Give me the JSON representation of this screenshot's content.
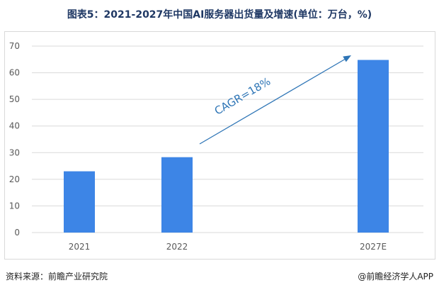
{
  "title": "图表5：2021-2027年中国AI服务器出货量及增速(单位：万台，%)",
  "source": "资料来源：前瞻产业研究院",
  "credit": "@前瞻经济学人APP",
  "chart_data": {
    "type": "bar",
    "title": "图表5：2021-2027年中国AI服务器出货量及增速(单位：万台，%)",
    "categories": [
      "2021",
      "2022",
      "2027E"
    ],
    "values": [
      23,
      28.3,
      64.8
    ],
    "ylim": [
      0,
      70
    ],
    "yticks": [
      0,
      10,
      20,
      30,
      40,
      50,
      60,
      70
    ],
    "grid": true,
    "bar_color": "#3d85e6",
    "annotation": {
      "text": "CAGR=18%",
      "color": "#2e75b6"
    }
  }
}
